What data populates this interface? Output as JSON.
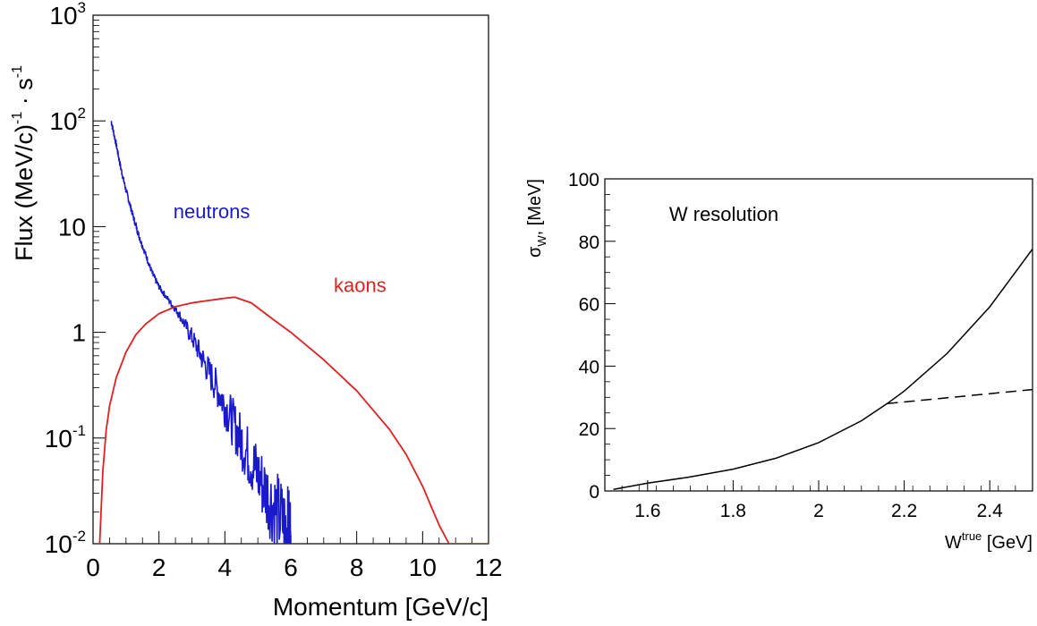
{
  "chart_data": [
    {
      "type": "line",
      "xlabel": "Momentum [GeV/c]",
      "ylabel_main": "Flux (MeV/c)",
      "ylabel_exp1": "-1",
      "ylabel_mid": " · s",
      "ylabel_exp2": "-1",
      "xlim": [
        0,
        12
      ],
      "ylim": [
        0.01,
        1000
      ],
      "yscale": "log",
      "x_ticks": [
        0,
        2,
        4,
        6,
        8,
        10,
        12
      ],
      "y_ticks": [
        {
          "value": 0.01,
          "base": "10",
          "exp": "-2"
        },
        {
          "value": 0.1,
          "base": "10",
          "exp": "-1"
        },
        {
          "value": 1,
          "base": "1",
          "exp": ""
        },
        {
          "value": 10,
          "base": "10",
          "exp": ""
        },
        {
          "value": 100,
          "base": "10",
          "exp": "2"
        },
        {
          "value": 1000,
          "base": "10",
          "exp": "3"
        }
      ],
      "series": [
        {
          "name": "neutrons",
          "color": "#1a1acc",
          "noisy": true,
          "x": [
            0.55,
            0.7,
            0.85,
            1.0,
            1.2,
            1.4,
            1.6,
            1.8,
            2.0,
            2.3,
            2.6,
            3.0,
            3.4,
            3.8,
            4.2,
            4.6,
            5.0,
            5.4,
            5.8,
            6.0
          ],
          "y": [
            100,
            60,
            35,
            22,
            13,
            8,
            5.4,
            3.6,
            2.7,
            2.0,
            1.5,
            0.9,
            0.5,
            0.28,
            0.15,
            0.08,
            0.045,
            0.025,
            0.015,
            0.012
          ]
        },
        {
          "name": "kaons",
          "color": "#e02020",
          "noisy": false,
          "x": [
            0.2,
            0.3,
            0.4,
            0.5,
            0.7,
            1.0,
            1.3,
            1.6,
            2.0,
            2.5,
            3.0,
            3.5,
            4.0,
            4.3,
            4.8,
            5.5,
            6.0,
            7.0,
            8.0,
            9.0,
            9.5,
            10.0,
            10.5,
            10.8,
            11.0
          ],
          "y": [
            0.01,
            0.05,
            0.12,
            0.2,
            0.37,
            0.65,
            0.95,
            1.2,
            1.5,
            1.75,
            1.9,
            2.0,
            2.1,
            2.15,
            1.9,
            1.3,
            1.0,
            0.55,
            0.28,
            0.12,
            0.07,
            0.035,
            0.015,
            0.01,
            0.01
          ]
        }
      ],
      "annotations": [
        {
          "text": "neutrons",
          "color": "#1a1acc",
          "x": 3.6,
          "y": 12
        },
        {
          "text": "kaons",
          "color": "#e02020",
          "x": 8.1,
          "y": 2.4
        }
      ]
    },
    {
      "type": "line",
      "title": "W resolution",
      "xlabel_main": "W",
      "xlabel_sup": "true",
      "xlabel_unit": " [GeV]",
      "ylabel_sigma": "σ",
      "ylabel_sub": "W",
      "ylabel_rest": ", [MeV]",
      "xlim": [
        1.5,
        2.5
      ],
      "ylim": [
        0,
        100
      ],
      "x_ticks": [
        "1.6",
        "1.8",
        "2",
        "2.2",
        "2.4"
      ],
      "y_ticks": [
        "0",
        "20",
        "40",
        "60",
        "80",
        "100"
      ],
      "series": [
        {
          "name": "",
          "style": "solid",
          "x": [
            1.52,
            1.6,
            1.7,
            1.8,
            1.9,
            2.0,
            2.1,
            2.16,
            2.2,
            2.3,
            2.4,
            2.5
          ],
          "y": [
            0.5,
            2.5,
            4.5,
            7,
            10.5,
            15.5,
            22.5,
            28,
            32,
            44,
            59,
            77.5
          ]
        },
        {
          "name": "",
          "style": "dashed",
          "x": [
            2.16,
            2.5
          ],
          "y": [
            28,
            32.5
          ]
        }
      ]
    }
  ]
}
